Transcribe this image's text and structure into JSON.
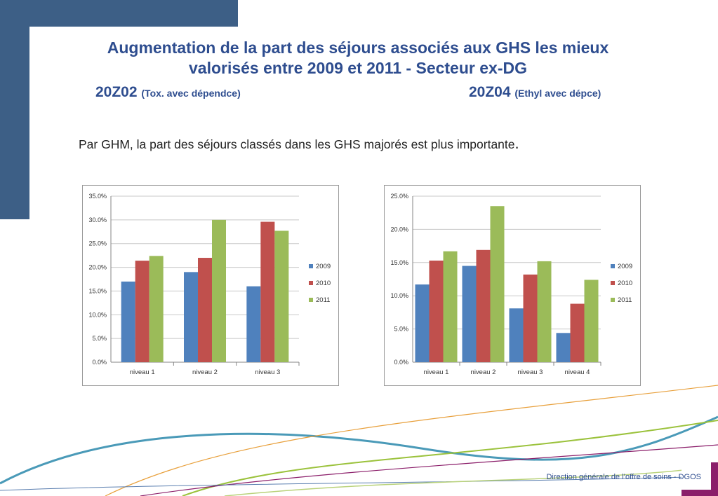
{
  "title_lines": [
    "Augmentation de la part des séjours associés aux GHS les mieux",
    "valorisés entre 2009 et 2011 - Secteur ex-DG"
  ],
  "left_code": "20Z02",
  "left_desc": "(Tox. avec dépendce)",
  "right_code": "20Z04",
  "right_desc": "(Ethyl avec dépce)",
  "intro_text": "Par GHM, la part des séjours classés dans les GHS majorés est plus importante",
  "intro_punct": ".",
  "footer": "Direction générale de l’offre de soins - DGOS",
  "colors": {
    "title": "#2e4d8f",
    "2009": "#4f81bd",
    "2010": "#c0504d",
    "2011": "#9bbb59",
    "banner": "#3d5f86"
  },
  "chart_data": [
    {
      "type": "bar",
      "categories": [
        "niveau 1",
        "niveau 2",
        "niveau 3"
      ],
      "series": [
        {
          "name": "2009",
          "values": [
            17.0,
            19.0,
            16.0
          ],
          "color": "#4f81bd"
        },
        {
          "name": "2010",
          "values": [
            21.4,
            22.0,
            29.6
          ],
          "color": "#c0504d"
        },
        {
          "name": "2011",
          "values": [
            22.4,
            30.0,
            27.7
          ],
          "color": "#9bbb59"
        }
      ],
      "ylim": [
        0,
        35
      ],
      "yticks": [
        "0.0%",
        "5.0%",
        "10.0%",
        "15.0%",
        "20.0%",
        "25.0%",
        "30.0%",
        "35.0%"
      ],
      "grid": true,
      "legend": "right"
    },
    {
      "type": "bar",
      "categories": [
        "niveau 1",
        "niveau 2",
        "niveau 3",
        "niveau 4"
      ],
      "series": [
        {
          "name": "2009",
          "values": [
            11.7,
            14.5,
            8.1,
            4.4
          ],
          "color": "#4f81bd"
        },
        {
          "name": "2010",
          "values": [
            15.3,
            16.9,
            13.2,
            8.8
          ],
          "color": "#c0504d"
        },
        {
          "name": "2011",
          "values": [
            16.7,
            23.5,
            15.2,
            12.4
          ],
          "color": "#9bbb59"
        }
      ],
      "ylim": [
        0,
        25
      ],
      "yticks": [
        "0.0%",
        "5.0%",
        "10.0%",
        "15.0%",
        "20.0%",
        "25.0%"
      ],
      "grid": true,
      "legend": "right"
    }
  ]
}
